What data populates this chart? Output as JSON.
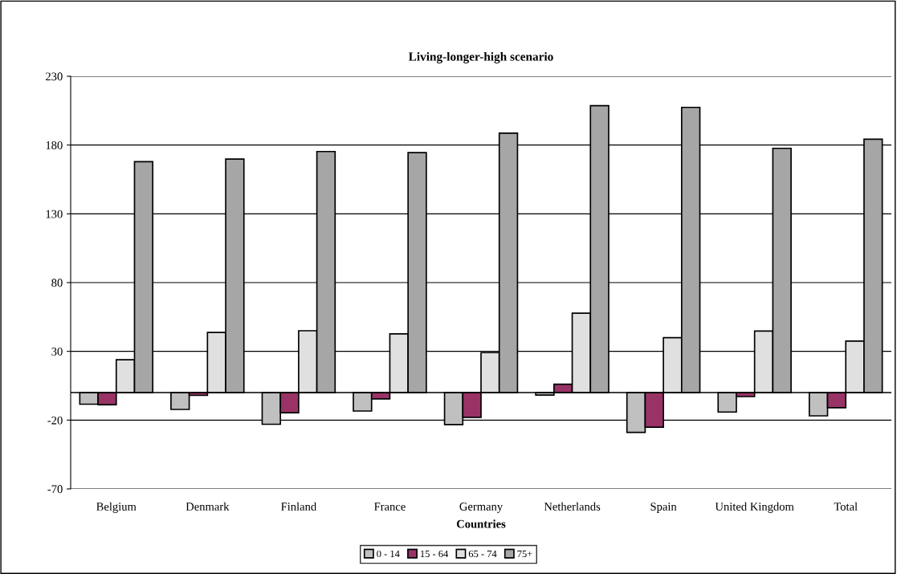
{
  "chart_data": {
    "type": "bar",
    "title": "Living-longer-high scenario",
    "xlabel": "Countries",
    "categories": [
      "Belgium",
      "Denmark",
      "Finland",
      "France",
      "Germany",
      "Netherlands",
      "Spain",
      "United Kingdom",
      "Total"
    ],
    "series": [
      {
        "name": "0 - 14",
        "color": "#c0c0c0",
        "values": [
          -8.4,
          -12.2,
          -23,
          -13.4,
          -23.2,
          -1.8,
          -28.9,
          -14.1,
          -16.9
        ]
      },
      {
        "name": "15 - 64",
        "color": "#993366",
        "values": [
          -8.8,
          -2,
          -14.6,
          -4.6,
          -18,
          6.1,
          -25.1,
          -2.9,
          -11
        ]
      },
      {
        "name": "65 - 74",
        "color": "#e0e0e0",
        "values": [
          23.9,
          43.7,
          45,
          42.7,
          29.1,
          57.7,
          39.9,
          44.8,
          37.5
        ]
      },
      {
        "name": "75+",
        "color": "#a6a6a6",
        "values": [
          167.9,
          169.8,
          175.3,
          174.5,
          188.6,
          208.6,
          207.4,
          177.6,
          184.3
        ]
      }
    ],
    "ylim": [
      -70,
      230
    ],
    "yticks": [
      -70,
      -20,
      30,
      80,
      130,
      180,
      230
    ],
    "grid": "y",
    "legend": "bottom"
  }
}
